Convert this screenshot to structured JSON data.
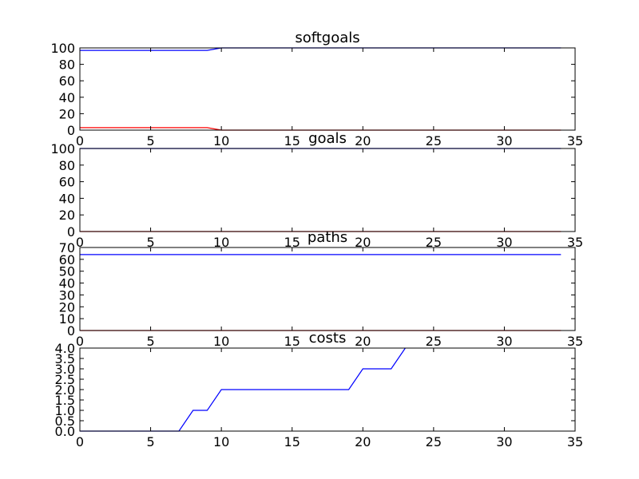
{
  "chart_data": [
    {
      "type": "line",
      "title": "softgoals",
      "xlabel": "",
      "ylabel": "",
      "xlim": [
        0,
        35
      ],
      "ylim": [
        0,
        100
      ],
      "xticks": [
        0,
        5,
        10,
        15,
        20,
        25,
        30,
        35
      ],
      "yticks": [
        0,
        20,
        40,
        60,
        80,
        100
      ],
      "grid": false,
      "series": [
        {
          "color": "#0000ff",
          "x": [
            0,
            9,
            10,
            34
          ],
          "y": [
            97,
            97,
            100,
            100
          ]
        },
        {
          "color": "#ff0000",
          "x": [
            0,
            9,
            10,
            34
          ],
          "y": [
            3,
            3,
            0,
            0
          ]
        }
      ]
    },
    {
      "type": "line",
      "title": "goals",
      "xlabel": "",
      "ylabel": "",
      "xlim": [
        0,
        35
      ],
      "ylim": [
        0,
        100
      ],
      "xticks": [
        0,
        5,
        10,
        15,
        20,
        25,
        30,
        35
      ],
      "yticks": [
        0,
        20,
        40,
        60,
        80,
        100
      ],
      "grid": false,
      "series": [
        {
          "color": "#0000ff",
          "x": [
            0,
            34
          ],
          "y": [
            100,
            100
          ]
        },
        {
          "color": "#ff0000",
          "x": [
            0,
            34
          ],
          "y": [
            0,
            0
          ]
        }
      ]
    },
    {
      "type": "line",
      "title": "paths",
      "xlabel": "",
      "ylabel": "",
      "xlim": [
        0,
        35
      ],
      "ylim": [
        0,
        70
      ],
      "xticks": [
        0,
        5,
        10,
        15,
        20,
        25,
        30,
        35
      ],
      "yticks": [
        0,
        10,
        20,
        30,
        40,
        50,
        60,
        70
      ],
      "grid": false,
      "series": [
        {
          "color": "#0000ff",
          "x": [
            0,
            34
          ],
          "y": [
            64,
            64
          ]
        },
        {
          "color": "#ff0000",
          "x": [
            0,
            34
          ],
          "y": [
            0,
            0
          ]
        }
      ]
    },
    {
      "type": "line",
      "title": "costs",
      "xlabel": "",
      "ylabel": "",
      "xlim": [
        0,
        35
      ],
      "ylim": [
        0,
        4
      ],
      "xticks": [
        0,
        5,
        10,
        15,
        20,
        25,
        30,
        35
      ],
      "yticks": [
        "0.0",
        "0.5",
        "1.0",
        "1.5",
        "2.0",
        "2.5",
        "3.0",
        "3.5",
        "4.0"
      ],
      "grid": false,
      "series": [
        {
          "color": "#0000ff",
          "x": [
            0,
            7,
            8,
            9,
            10,
            19,
            20,
            22,
            23
          ],
          "y": [
            0,
            0,
            1,
            1,
            2,
            2,
            3,
            3,
            4
          ]
        }
      ]
    }
  ]
}
